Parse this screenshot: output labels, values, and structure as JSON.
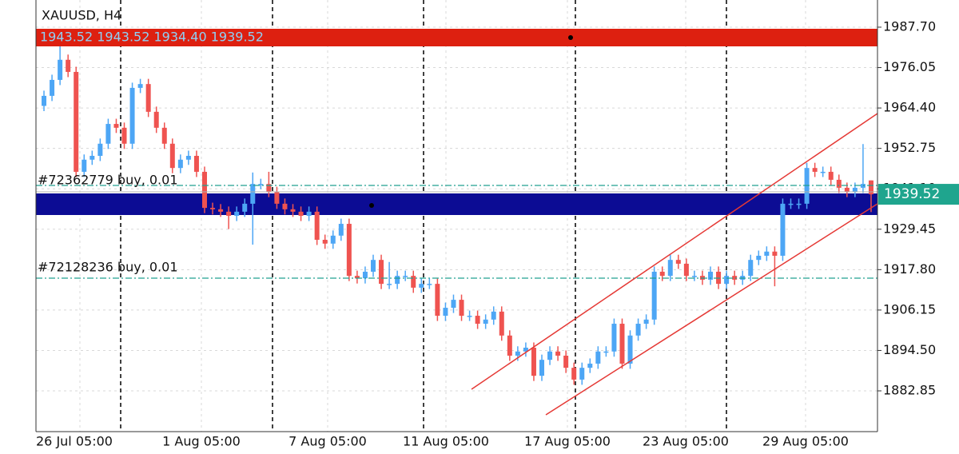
{
  "chart_data": {
    "type": "candlestick",
    "title": "XAUUSD, H4",
    "ohlc_text": "1943.52 1943.52 1934.40 1939.52",
    "up_color": "#4da6f5",
    "down_color": "#ef5350",
    "ylim": [
      1871.1,
      1995.53
    ],
    "yticks": [
      {
        "value": 1987.7,
        "label": "1987.70"
      },
      {
        "value": 1976.05,
        "label": "1976.05"
      },
      {
        "value": 1964.4,
        "label": "1964.40"
      },
      {
        "value": 1952.75,
        "label": "1952.75"
      },
      {
        "value": 1941.1,
        "label": "1941.10"
      },
      {
        "value": 1929.45,
        "label": "1929.45"
      },
      {
        "value": 1917.8,
        "label": "1917.80"
      },
      {
        "value": 1906.15,
        "label": "1906.15"
      },
      {
        "value": 1894.5,
        "label": "1894.50"
      },
      {
        "value": 1882.85,
        "label": "1882.85"
      }
    ],
    "xticks": [
      "26 Jul 05:00",
      "1 Aug 05:00",
      "7 Aug 05:00",
      "11 Aug 05:00",
      "17 Aug 05:00",
      "23 Aug 05:00",
      "29 Aug 05:00"
    ],
    "orders": [
      "#72362779 buy, 0.01",
      "#72128236 buy, 0.01"
    ],
    "candles": [
      [
        1965.0,
        1969.4,
        1963.5,
        1967.9
      ],
      [
        1967.9,
        1974.0,
        1966.4,
        1972.5
      ],
      [
        1972.5,
        1983.0,
        1971.0,
        1978.3
      ],
      [
        1978.3,
        1979.8,
        1973.3,
        1974.8
      ],
      [
        1974.8,
        1976.3,
        1944.5,
        1946.0
      ],
      [
        1946.0,
        1951.0,
        1944.5,
        1949.5
      ],
      [
        1949.5,
        1952.1,
        1948.0,
        1950.6
      ],
      [
        1950.6,
        1955.6,
        1949.1,
        1954.1
      ],
      [
        1954.1,
        1961.3,
        1952.6,
        1959.8
      ],
      [
        1959.8,
        1961.3,
        1957.2,
        1958.7
      ],
      [
        1958.7,
        1960.2,
        1952.6,
        1954.1
      ],
      [
        1954.1,
        1971.7,
        1952.6,
        1970.2
      ],
      [
        1970.2,
        1972.8,
        1968.7,
        1971.3
      ],
      [
        1971.3,
        1972.8,
        1961.8,
        1963.3
      ],
      [
        1963.3,
        1964.8,
        1957.2,
        1958.7
      ],
      [
        1958.7,
        1960.2,
        1952.6,
        1954.1
      ],
      [
        1954.1,
        1955.6,
        1945.6,
        1947.1
      ],
      [
        1947.1,
        1951.0,
        1945.6,
        1949.5
      ],
      [
        1949.5,
        1952.1,
        1948.0,
        1950.6
      ],
      [
        1950.6,
        1952.1,
        1944.5,
        1946.0
      ],
      [
        1946.0,
        1947.5,
        1934.1,
        1935.6
      ],
      [
        1935.6,
        1937.1,
        1933.7,
        1935.2
      ],
      [
        1935.2,
        1936.7,
        1933.0,
        1934.5
      ],
      [
        1934.5,
        1936.0,
        1929.5,
        1933.3
      ],
      [
        1933.3,
        1936.0,
        1931.8,
        1934.5
      ],
      [
        1934.5,
        1938.3,
        1933.0,
        1936.8
      ],
      [
        1936.8,
        1945.8,
        1925.0,
        1942.5
      ],
      [
        1942.5,
        1944.0,
        1941.0,
        1942.5
      ],
      [
        1942.5,
        1946.0,
        1938.7,
        1940.2
      ],
      [
        1940.2,
        1941.7,
        1935.3,
        1936.8
      ],
      [
        1936.8,
        1938.3,
        1933.7,
        1935.2
      ],
      [
        1935.2,
        1936.7,
        1933.0,
        1934.5
      ],
      [
        1934.5,
        1936.0,
        1931.8,
        1933.3
      ],
      [
        1933.3,
        1936.0,
        1931.8,
        1934.5
      ],
      [
        1934.5,
        1936.0,
        1924.9,
        1926.4
      ],
      [
        1926.4,
        1927.9,
        1923.8,
        1925.3
      ],
      [
        1925.3,
        1929.1,
        1923.8,
        1927.6
      ],
      [
        1927.6,
        1932.5,
        1926.1,
        1931.0
      ],
      [
        1931.0,
        1932.5,
        1914.5,
        1916.0
      ],
      [
        1916.0,
        1917.5,
        1913.8,
        1915.3
      ],
      [
        1915.3,
        1918.7,
        1913.8,
        1917.2
      ],
      [
        1917.2,
        1922.1,
        1915.7,
        1920.6
      ],
      [
        1920.6,
        1922.1,
        1912.2,
        1913.7
      ],
      [
        1913.7,
        1920.0,
        1912.2,
        1913.7
      ],
      [
        1913.7,
        1917.5,
        1912.2,
        1916.0
      ],
      [
        1916.0,
        1917.5,
        1914.5,
        1916.0
      ],
      [
        1916.0,
        1917.5,
        1911.1,
        1912.6
      ],
      [
        1912.6,
        1915.2,
        1911.1,
        1913.7
      ],
      [
        1913.7,
        1915.2,
        1912.2,
        1913.7
      ],
      [
        1913.7,
        1915.2,
        1903.0,
        1904.5
      ],
      [
        1904.5,
        1908.3,
        1903.0,
        1906.8
      ],
      [
        1906.8,
        1910.6,
        1905.3,
        1909.1
      ],
      [
        1909.1,
        1910.6,
        1903.0,
        1904.5
      ],
      [
        1904.5,
        1906.0,
        1903.0,
        1904.5
      ],
      [
        1904.5,
        1906.0,
        1900.7,
        1902.2
      ],
      [
        1902.2,
        1904.9,
        1900.7,
        1903.4
      ],
      [
        1903.4,
        1907.2,
        1901.9,
        1905.7
      ],
      [
        1905.7,
        1907.2,
        1897.3,
        1898.8
      ],
      [
        1898.8,
        1900.3,
        1891.5,
        1893.0
      ],
      [
        1893.0,
        1895.7,
        1891.5,
        1894.2
      ],
      [
        1894.2,
        1896.8,
        1892.7,
        1895.3
      ],
      [
        1895.3,
        1896.8,
        1885.7,
        1887.2
      ],
      [
        1887.2,
        1893.3,
        1885.7,
        1891.8
      ],
      [
        1891.8,
        1895.7,
        1890.3,
        1894.2
      ],
      [
        1894.2,
        1895.7,
        1891.5,
        1893.0
      ],
      [
        1893.0,
        1894.5,
        1888.0,
        1889.5
      ],
      [
        1889.5,
        1891.0,
        1884.6,
        1886.1
      ],
      [
        1886.1,
        1891.0,
        1884.6,
        1889.5
      ],
      [
        1889.5,
        1892.2,
        1888.0,
        1890.7
      ],
      [
        1890.7,
        1895.7,
        1889.2,
        1894.2
      ],
      [
        1894.2,
        1895.7,
        1892.7,
        1894.2
      ],
      [
        1894.2,
        1903.7,
        1892.7,
        1902.2
      ],
      [
        1902.2,
        1903.7,
        1889.2,
        1890.7
      ],
      [
        1890.7,
        1900.3,
        1889.2,
        1898.8
      ],
      [
        1898.8,
        1903.7,
        1897.3,
        1902.2
      ],
      [
        1902.2,
        1904.9,
        1900.7,
        1903.4
      ],
      [
        1903.4,
        1918.7,
        1901.9,
        1917.2
      ],
      [
        1917.2,
        1918.7,
        1914.5,
        1916.0
      ],
      [
        1916.0,
        1922.1,
        1914.5,
        1920.6
      ],
      [
        1920.6,
        1922.1,
        1918.0,
        1919.5
      ],
      [
        1919.5,
        1921.0,
        1914.5,
        1916.0
      ],
      [
        1916.0,
        1917.5,
        1914.5,
        1916.0
      ],
      [
        1916.0,
        1917.5,
        1913.4,
        1914.9
      ],
      [
        1914.9,
        1918.7,
        1913.4,
        1917.2
      ],
      [
        1917.2,
        1918.7,
        1912.2,
        1913.7
      ],
      [
        1913.7,
        1917.5,
        1912.2,
        1916.0
      ],
      [
        1916.0,
        1917.5,
        1913.4,
        1914.9
      ],
      [
        1914.9,
        1917.5,
        1913.4,
        1916.0
      ],
      [
        1916.0,
        1922.1,
        1914.5,
        1920.6
      ],
      [
        1920.6,
        1923.3,
        1919.1,
        1921.8
      ],
      [
        1921.8,
        1924.5,
        1920.3,
        1923.0
      ],
      [
        1923.0,
        1924.5,
        1913.0,
        1921.8
      ],
      [
        1921.8,
        1938.3,
        1920.3,
        1936.8
      ],
      [
        1936.8,
        1938.3,
        1935.3,
        1936.8
      ],
      [
        1936.8,
        1938.3,
        1935.3,
        1936.8
      ],
      [
        1936.8,
        1948.6,
        1935.3,
        1947.1
      ],
      [
        1947.1,
        1948.6,
        1944.5,
        1946.0
      ],
      [
        1946.0,
        1947.5,
        1944.5,
        1946.0
      ],
      [
        1946.0,
        1947.5,
        1942.2,
        1943.7
      ],
      [
        1943.7,
        1945.2,
        1939.9,
        1941.4
      ],
      [
        1941.4,
        1942.9,
        1938.7,
        1940.2
      ],
      [
        1940.2,
        1942.9,
        1938.7,
        1941.4
      ],
      [
        1941.4,
        1954.0,
        1939.9,
        1942.5
      ],
      [
        1943.52,
        1943.52,
        1934.4,
        1939.52
      ]
    ]
  }
}
